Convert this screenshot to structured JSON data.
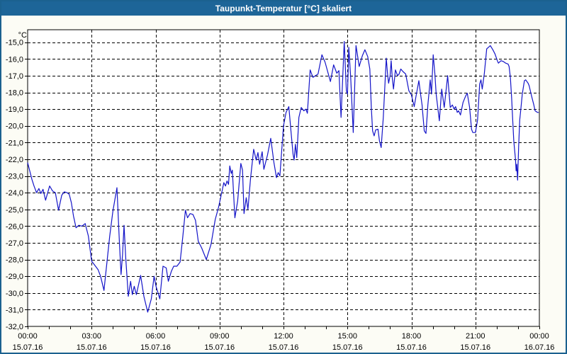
{
  "window": {
    "title": "Taupunkt-Temperatur [°C] skaliert"
  },
  "colors": {
    "titlebar_bg": "#1d6598",
    "window_border": "#1b618f",
    "window_bg": "#fcfcf5",
    "plot_bg": "#ffffff",
    "grid": "#000000",
    "text": "#000000",
    "line": "#1414c8"
  },
  "chart_data": {
    "type": "line",
    "title": "Taupunkt-Temperatur [°C] skaliert",
    "unit_label": "°C",
    "grid": "dashed",
    "legend_position": "none",
    "y_axis": {
      "min": -32,
      "max": -14.25,
      "tick_values": [
        -15,
        -16,
        -17,
        -18,
        -19,
        -20,
        -21,
        -22,
        -23,
        -24,
        -25,
        -26,
        -27,
        -28,
        -29,
        -30,
        -31,
        -32
      ],
      "tick_labels": [
        "-15,0",
        "-16,0",
        "-17,0",
        "-18,0",
        "-19,0",
        "-20,0",
        "-21,0",
        "-22,0",
        "-23,0",
        "-24,0",
        "-25,0",
        "-26,0",
        "-27,0",
        "-28,0",
        "-29,0",
        "-30,0",
        "-31,0",
        "-32,0"
      ]
    },
    "x_axis": {
      "min_hours": 0,
      "max_hours": 24,
      "minor_tick_every_hours": 1,
      "major_ticks": [
        {
          "hour": 0,
          "time": "00:00",
          "date": "15.07.16"
        },
        {
          "hour": 3,
          "time": "03:00",
          "date": "15.07.16"
        },
        {
          "hour": 6,
          "time": "06:00",
          "date": "15.07.16"
        },
        {
          "hour": 9,
          "time": "09:00",
          "date": "15.07.16"
        },
        {
          "hour": 12,
          "time": "12:00",
          "date": "15.07.16"
        },
        {
          "hour": 15,
          "time": "15:00",
          "date": "15.07.16"
        },
        {
          "hour": 18,
          "time": "18:00",
          "date": "15.07.16"
        },
        {
          "hour": 21,
          "time": "21:00",
          "date": "15.07.16"
        },
        {
          "hour": 24,
          "time": "00:00",
          "date": "16.07.16"
        }
      ]
    },
    "series": [
      {
        "name": "Taupunkt-Temperatur",
        "color": "#1414c8",
        "points": [
          [
            0.0,
            -22.2
          ],
          [
            0.1,
            -22.7
          ],
          [
            0.2,
            -23.2
          ],
          [
            0.3,
            -23.6
          ],
          [
            0.42,
            -24.0
          ],
          [
            0.53,
            -23.75
          ],
          [
            0.62,
            -24.05
          ],
          [
            0.72,
            -23.8
          ],
          [
            0.84,
            -24.45
          ],
          [
            1.03,
            -23.6
          ],
          [
            1.17,
            -23.9
          ],
          [
            1.3,
            -24.0
          ],
          [
            1.45,
            -25.05
          ],
          [
            1.6,
            -24.15
          ],
          [
            1.72,
            -23.95
          ],
          [
            1.85,
            -24.0
          ],
          [
            1.95,
            -24.1
          ],
          [
            2.05,
            -24.6
          ],
          [
            2.15,
            -25.4
          ],
          [
            2.27,
            -26.1
          ],
          [
            2.4,
            -25.95
          ],
          [
            2.55,
            -26.0
          ],
          [
            2.7,
            -25.85
          ],
          [
            2.85,
            -26.6
          ],
          [
            3.0,
            -28.1
          ],
          [
            3.15,
            -28.35
          ],
          [
            3.3,
            -28.6
          ],
          [
            3.42,
            -29.0
          ],
          [
            3.58,
            -29.85
          ],
          [
            3.7,
            -28.4
          ],
          [
            3.85,
            -26.6
          ],
          [
            4.0,
            -25.1
          ],
          [
            4.19,
            -23.7
          ],
          [
            4.3,
            -26.9
          ],
          [
            4.38,
            -28.9
          ],
          [
            4.45,
            -27.7
          ],
          [
            4.52,
            -25.95
          ],
          [
            4.6,
            -27.9
          ],
          [
            4.72,
            -30.2
          ],
          [
            4.83,
            -29.3
          ],
          [
            4.91,
            -30.1
          ],
          [
            5.0,
            -29.6
          ],
          [
            5.1,
            -30.1
          ],
          [
            5.3,
            -28.95
          ],
          [
            5.45,
            -30.2
          ],
          [
            5.63,
            -31.15
          ],
          [
            5.8,
            -30.35
          ],
          [
            5.93,
            -29.0
          ],
          [
            6.02,
            -29.6
          ],
          [
            6.2,
            -30.35
          ],
          [
            6.35,
            -28.4
          ],
          [
            6.5,
            -28.5
          ],
          [
            6.6,
            -29.3
          ],
          [
            6.74,
            -28.7
          ],
          [
            6.85,
            -28.4
          ],
          [
            7.0,
            -28.4
          ],
          [
            7.15,
            -28.15
          ],
          [
            7.28,
            -26.6
          ],
          [
            7.4,
            -25.05
          ],
          [
            7.5,
            -25.5
          ],
          [
            7.62,
            -25.25
          ],
          [
            7.75,
            -25.3
          ],
          [
            7.87,
            -25.65
          ],
          [
            8.0,
            -26.9
          ],
          [
            8.16,
            -27.3
          ],
          [
            8.38,
            -28.0
          ],
          [
            8.6,
            -27.1
          ],
          [
            8.8,
            -25.6
          ],
          [
            8.95,
            -24.9
          ],
          [
            9.1,
            -24.0
          ],
          [
            9.2,
            -23.4
          ],
          [
            9.28,
            -23.6
          ],
          [
            9.35,
            -23.3
          ],
          [
            9.42,
            -23.5
          ],
          [
            9.48,
            -22.4
          ],
          [
            9.55,
            -22.85
          ],
          [
            9.6,
            -22.65
          ],
          [
            9.72,
            -25.5
          ],
          [
            9.85,
            -24.5
          ],
          [
            10.0,
            -22.25
          ],
          [
            10.08,
            -22.65
          ],
          [
            10.15,
            -25.25
          ],
          [
            10.25,
            -24.3
          ],
          [
            10.33,
            -25.0
          ],
          [
            10.45,
            -23.2
          ],
          [
            10.6,
            -21.4
          ],
          [
            10.72,
            -22.05
          ],
          [
            10.8,
            -21.6
          ],
          [
            10.88,
            -22.3
          ],
          [
            11.0,
            -21.55
          ],
          [
            11.08,
            -22.6
          ],
          [
            11.25,
            -21.75
          ],
          [
            11.4,
            -20.75
          ],
          [
            11.55,
            -22.2
          ],
          [
            11.67,
            -23.1
          ],
          [
            11.75,
            -22.8
          ],
          [
            11.83,
            -23.0
          ],
          [
            12.0,
            -20.0
          ],
          [
            12.12,
            -19.2
          ],
          [
            12.25,
            -18.85
          ],
          [
            12.35,
            -20.3
          ],
          [
            12.45,
            -21.7
          ],
          [
            12.5,
            -22.05
          ],
          [
            12.56,
            -21.1
          ],
          [
            12.62,
            -21.9
          ],
          [
            12.72,
            -19.5
          ],
          [
            12.83,
            -18.9
          ],
          [
            12.95,
            -19.1
          ],
          [
            13.05,
            -19.0
          ],
          [
            13.12,
            -19.25
          ],
          [
            13.25,
            -16.65
          ],
          [
            13.38,
            -17.1
          ],
          [
            13.5,
            -17.0
          ],
          [
            13.62,
            -16.9
          ],
          [
            13.8,
            -15.75
          ],
          [
            13.95,
            -16.2
          ],
          [
            14.2,
            -17.35
          ],
          [
            14.35,
            -16.35
          ],
          [
            14.5,
            -16.85
          ],
          [
            14.6,
            -16.7
          ],
          [
            14.7,
            -19.5
          ],
          [
            14.85,
            -14.95
          ],
          [
            14.95,
            -17.9
          ],
          [
            15.0,
            -18.1
          ],
          [
            15.06,
            -15.3
          ],
          [
            15.15,
            -17.1
          ],
          [
            15.27,
            -20.4
          ],
          [
            15.4,
            -15.2
          ],
          [
            15.55,
            -16.45
          ],
          [
            15.7,
            -15.8
          ],
          [
            15.82,
            -15.45
          ],
          [
            15.95,
            -15.85
          ],
          [
            16.05,
            -16.6
          ],
          [
            16.12,
            -18.9
          ],
          [
            16.18,
            -20.3
          ],
          [
            16.25,
            -20.6
          ],
          [
            16.32,
            -20.25
          ],
          [
            16.43,
            -20.2
          ],
          [
            16.5,
            -20.9
          ],
          [
            16.58,
            -21.3
          ],
          [
            16.68,
            -19.5
          ],
          [
            16.82,
            -15.95
          ],
          [
            16.88,
            -16.9
          ],
          [
            16.93,
            -17.45
          ],
          [
            17.0,
            -17.0
          ],
          [
            17.05,
            -16.1
          ],
          [
            17.1,
            -17.1
          ],
          [
            17.16,
            -17.8
          ],
          [
            17.25,
            -16.65
          ],
          [
            17.35,
            -17.0
          ],
          [
            17.42,
            -16.9
          ],
          [
            17.5,
            -16.6
          ],
          [
            17.6,
            -16.75
          ],
          [
            17.73,
            -16.9
          ],
          [
            17.88,
            -17.9
          ],
          [
            18.0,
            -18.15
          ],
          [
            18.13,
            -18.85
          ],
          [
            18.22,
            -18.2
          ],
          [
            18.35,
            -17.3
          ],
          [
            18.43,
            -18.1
          ],
          [
            18.5,
            -18.75
          ],
          [
            18.6,
            -20.3
          ],
          [
            18.68,
            -20.45
          ],
          [
            18.77,
            -18.75
          ],
          [
            18.88,
            -17.25
          ],
          [
            18.94,
            -18.1
          ],
          [
            19.02,
            -15.75
          ],
          [
            19.1,
            -16.9
          ],
          [
            19.16,
            -18.1
          ],
          [
            19.31,
            -19.7
          ],
          [
            19.42,
            -17.8
          ],
          [
            19.54,
            -18.9
          ],
          [
            19.7,
            -17.0
          ],
          [
            19.82,
            -18.9
          ],
          [
            19.92,
            -18.75
          ],
          [
            20.0,
            -19.0
          ],
          [
            20.07,
            -18.85
          ],
          [
            20.15,
            -19.2
          ],
          [
            20.21,
            -19.1
          ],
          [
            20.3,
            -19.35
          ],
          [
            20.42,
            -18.6
          ],
          [
            20.55,
            -18.2
          ],
          [
            20.62,
            -18.05
          ],
          [
            20.73,
            -18.9
          ],
          [
            20.82,
            -20.2
          ],
          [
            20.88,
            -20.4
          ],
          [
            21.0,
            -20.4
          ],
          [
            21.1,
            -19.65
          ],
          [
            21.2,
            -17.5
          ],
          [
            21.26,
            -17.25
          ],
          [
            21.32,
            -17.8
          ],
          [
            21.42,
            -16.85
          ],
          [
            21.53,
            -15.4
          ],
          [
            21.7,
            -15.2
          ],
          [
            21.82,
            -15.45
          ],
          [
            21.92,
            -15.7
          ],
          [
            22.03,
            -16.1
          ],
          [
            22.08,
            -16.25
          ],
          [
            22.2,
            -16.1
          ],
          [
            22.31,
            -16.15
          ],
          [
            22.42,
            -16.25
          ],
          [
            22.53,
            -16.3
          ],
          [
            22.58,
            -16.45
          ],
          [
            22.64,
            -17.1
          ],
          [
            22.7,
            -18.35
          ],
          [
            22.75,
            -19.65
          ],
          [
            22.8,
            -20.9
          ],
          [
            22.88,
            -22.0
          ],
          [
            22.91,
            -22.7
          ],
          [
            22.94,
            -22.3
          ],
          [
            22.98,
            -23.25
          ],
          [
            23.03,
            -21.2
          ],
          [
            23.08,
            -19.65
          ],
          [
            23.14,
            -18.9
          ],
          [
            23.2,
            -18.1
          ],
          [
            23.3,
            -17.3
          ],
          [
            23.36,
            -17.25
          ],
          [
            23.47,
            -17.45
          ],
          [
            23.52,
            -17.6
          ],
          [
            23.63,
            -18.2
          ],
          [
            23.74,
            -18.75
          ],
          [
            23.8,
            -19.1
          ],
          [
            23.91,
            -19.2
          ],
          [
            23.97,
            -19.2
          ]
        ]
      }
    ]
  }
}
